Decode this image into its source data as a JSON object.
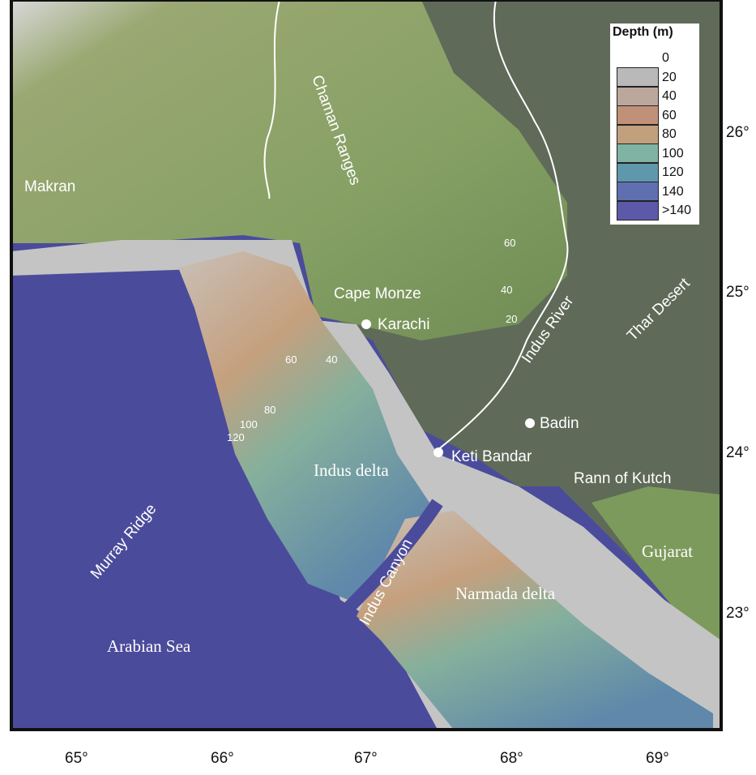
{
  "legend": {
    "title": "Depth (m)",
    "values": [
      "0",
      "20",
      "40",
      "60",
      "80",
      "100",
      "120",
      "140",
      ">140"
    ],
    "colors": [
      "#b9b9b9",
      "#bba79c",
      "#c09078",
      "#c2a07e",
      "#7fb3a3",
      "#5f98aa",
      "#5f6fb0",
      "#5c5aa8"
    ]
  },
  "labels": {
    "makran": "Makran",
    "chaman": "Chaman Ranges",
    "cape_monze": "Cape Monze",
    "karachi": "Karachi",
    "indus_river": "Indus River",
    "thar": "Thar Desert",
    "badin": "Badin",
    "keti_bandar": "Keti Bandar",
    "rann": "Rann of Kutch",
    "gujarat": "Gujarat",
    "indus_delta": "Indus delta",
    "narmada_delta": "Narmada delta",
    "indus_canyon": "Indus Canyon",
    "murray_ridge": "Murray Ridge",
    "arabian_sea": "Arabian Sea"
  },
  "contour_labels": [
    "60",
    "40",
    "20",
    "60",
    "40",
    "80",
    "100",
    "120"
  ],
  "lon_ticks": [
    "65°",
    "66°",
    "67°",
    "68°",
    "69°"
  ],
  "lat_ticks": [
    "26°",
    "25°",
    "24°",
    "23°"
  ],
  "colors": {
    "ocean": "#4b4b9c",
    "land_green": "#8aa468",
    "land_dark": "#5f6a58",
    "shelf": "#c4c4c4",
    "river": "#ffffff"
  }
}
